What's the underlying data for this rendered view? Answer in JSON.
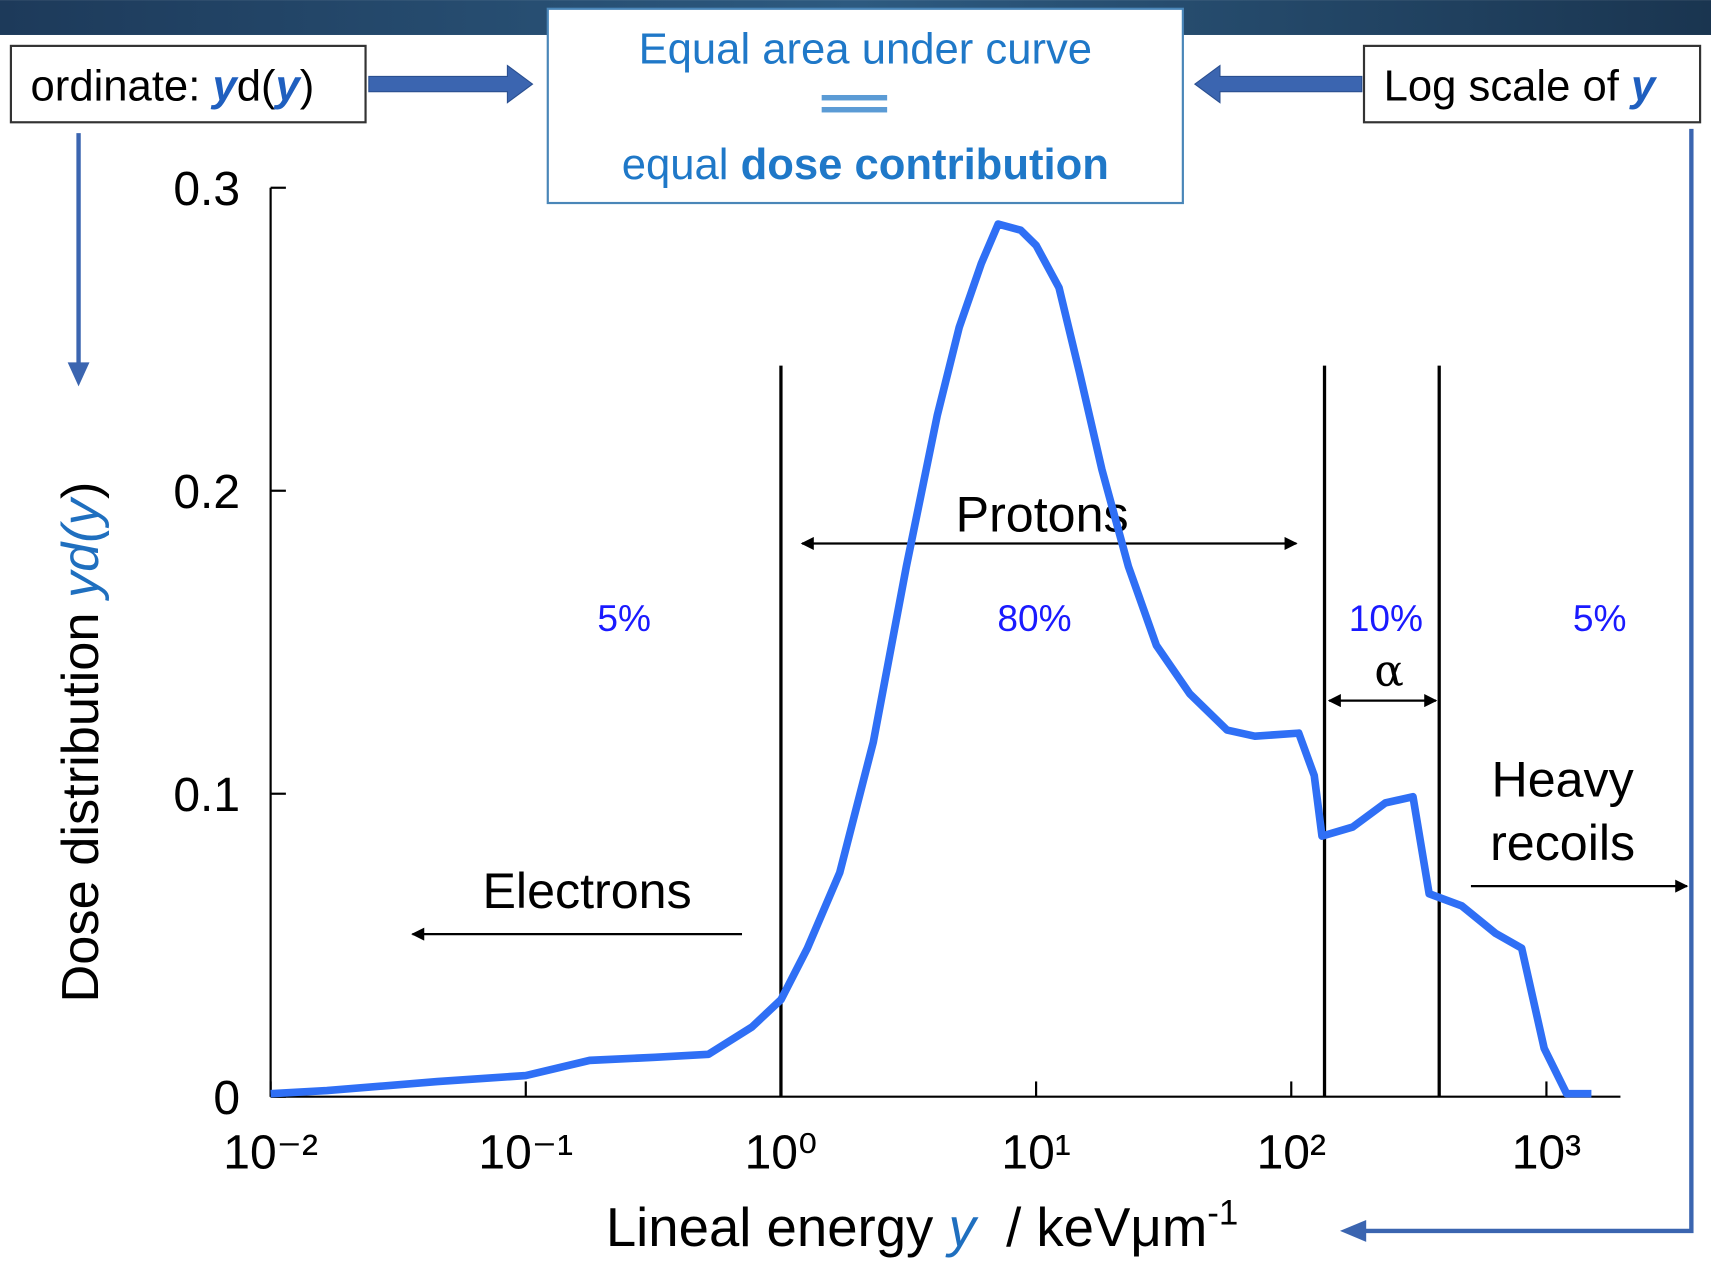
{
  "chart_data": {
    "type": "line",
    "title_box": {
      "line1": "Equal area under curve",
      "line2a": "equal ",
      "line2b": "dose contribution"
    },
    "left_box": [
      "ordinate: ",
      "y",
      "d(",
      "y",
      ")"
    ],
    "right_box": [
      "Log scale of ",
      "y"
    ],
    "y_label": [
      "Dose distribution ",
      "yd(",
      "y",
      ")"
    ],
    "x_label": [
      "Lineal energy ",
      "y",
      "  / keVμm",
      "-1"
    ],
    "log_x": true,
    "xlim": [
      0.01,
      1950
    ],
    "xticks": [
      {
        "value": 0.01,
        "label": "10⁻²"
      },
      {
        "value": 0.1,
        "label": "10⁻¹"
      },
      {
        "value": 1,
        "label": "10⁰"
      },
      {
        "value": 10,
        "label": "10¹"
      },
      {
        "value": 100,
        "label": "10²"
      },
      {
        "value": 1000,
        "label": "10³"
      }
    ],
    "ylim": [
      0,
      0.3
    ],
    "yticks": [
      0,
      0.1,
      0.2,
      0.3
    ],
    "series": [
      {
        "color": "#2f6ff5",
        "x": [
          0.01,
          0.0166,
          0.045,
          0.1,
          0.178,
          0.32,
          0.52,
          0.77,
          1,
          1.27,
          1.7,
          2.3,
          3.1,
          4.1,
          5.0,
          6.1,
          7.1,
          8.7,
          10,
          12.3,
          14.8,
          18.1,
          23,
          29.6,
          40,
          56,
          72,
          107,
          123,
          132,
          174,
          234,
          300,
          347,
          466,
          630,
          800,
          980,
          1200,
          1500
        ],
        "values": [
          0.001,
          0.002,
          0.005,
          0.007,
          0.012,
          0.013,
          0.014,
          0.023,
          0.032,
          0.049,
          0.074,
          0.117,
          0.175,
          0.225,
          0.254,
          0.275,
          0.288,
          0.286,
          0.281,
          0.267,
          0.239,
          0.207,
          0.175,
          0.149,
          0.133,
          0.121,
          0.119,
          0.12,
          0.106,
          0.086,
          0.089,
          0.097,
          0.099,
          0.067,
          0.063,
          0.054,
          0.049,
          0.016,
          0.001,
          0.001
        ]
      }
    ],
    "boundaries": [
      1,
      135,
      380
    ],
    "region_labels": [
      "5%",
      "80%",
      "10%",
      "5%"
    ],
    "annotations": {
      "protons": "Protons",
      "electrons": "Electrons",
      "alpha": "α",
      "heavy1": "Heavy",
      "heavy2": "recoils"
    }
  }
}
